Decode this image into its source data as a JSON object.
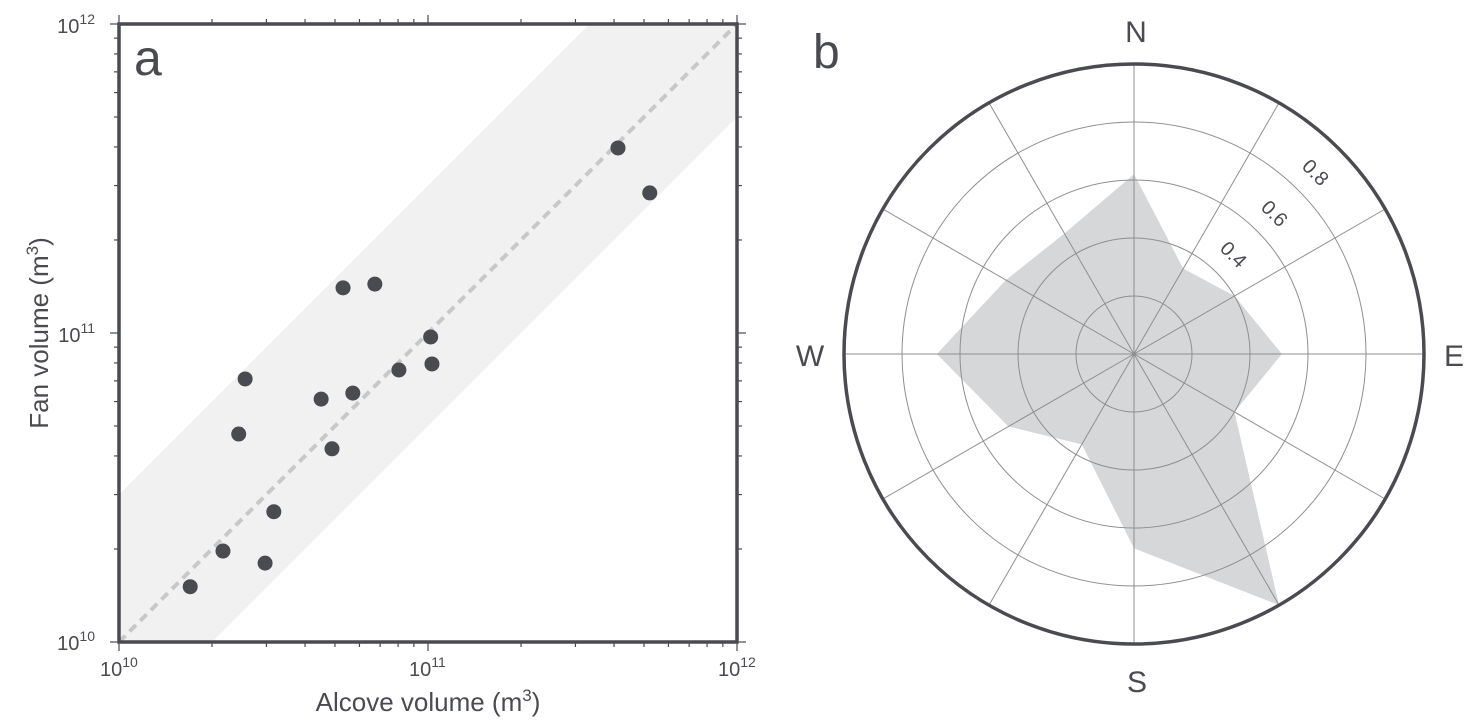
{
  "colors": {
    "axis": "#4a4b50",
    "point": "#4a4b50",
    "band": "#f1f1f1",
    "one_to_one": "#c8c8c8",
    "rose_fill": "#d6d7d9",
    "grid": "#8f8f8f"
  },
  "chart_data": [
    {
      "type": "scatter",
      "panel_label": "a",
      "xlabel": "Alcove volume (m",
      "xlabel_sup": "3",
      "xlabel_close": ")",
      "ylabel": "Fan volume (m",
      "ylabel_sup": "3",
      "ylabel_close": ")",
      "xscale": "log",
      "yscale": "log",
      "xlim": [
        10000000000.0,
        1000000000000.0
      ],
      "ylim": [
        10000000000.0,
        1000000000000.0
      ],
      "x_ticks": [
        {
          "base": "10",
          "exp": "10",
          "value": 10000000000.0
        },
        {
          "base": "10",
          "exp": "11",
          "value": 100000000000.0
        },
        {
          "base": "10",
          "exp": "12",
          "value": 1000000000000.0
        }
      ],
      "y_ticks": [
        {
          "base": "10",
          "exp": "10",
          "value": 10000000000.0
        },
        {
          "base": "10",
          "exp": "11",
          "value": 100000000000.0
        },
        {
          "base": "10",
          "exp": "12",
          "value": 1000000000000.0
        }
      ],
      "reference_line": {
        "type": "1:1",
        "style": "dashed"
      },
      "band": {
        "lower_factor": 0.5,
        "upper_factor": 3
      },
      "points": [
        {
          "x": 17000000000.0,
          "y": 15100000000.0
        },
        {
          "x": 21700000000.0,
          "y": 19700000000.0
        },
        {
          "x": 29700000000.0,
          "y": 18000000000.0
        },
        {
          "x": 31700000000.0,
          "y": 26400000000.0
        },
        {
          "x": 24400000000.0,
          "y": 47100000000.0
        },
        {
          "x": 25600000000.0,
          "y": 71000000000.0
        },
        {
          "x": 45100000000.0,
          "y": 61100000000.0
        },
        {
          "x": 48900000000.0,
          "y": 42200000000.0
        },
        {
          "x": 57100000000.0,
          "y": 63900000000.0
        },
        {
          "x": 80500000000.0,
          "y": 75900000000.0
        },
        {
          "x": 103000000000.0,
          "y": 79400000000.0
        },
        {
          "x": 102000000000.0,
          "y": 97100000000.0
        },
        {
          "x": 53100000000.0,
          "y": 140000000000.0
        },
        {
          "x": 67300000000.0,
          "y": 144000000000.0
        },
        {
          "x": 412000000000.0,
          "y": 397000000000.0
        },
        {
          "x": 522000000000.0,
          "y": 284000000000.0
        }
      ]
    },
    {
      "type": "polar-area",
      "panel_label": "b",
      "directions": [
        "N",
        "E",
        "S",
        "W"
      ],
      "r_max": 1.0,
      "r_rings": [
        0.2,
        0.4,
        0.6,
        0.8,
        1.0
      ],
      "r_tick_labels": [
        "0.4",
        "0.6",
        "0.8"
      ],
      "r_tick_values": [
        0.4,
        0.6,
        0.8
      ],
      "angle_step_deg": 30,
      "angles_deg": [
        0,
        30,
        60,
        90,
        120,
        150,
        180,
        210,
        240,
        270,
        300,
        330
      ],
      "values": [
        0.62,
        0.34,
        0.4,
        0.51,
        0.4,
        1.0,
        0.67,
        0.36,
        0.5,
        0.68,
        0.51,
        0.48
      ]
    }
  ]
}
